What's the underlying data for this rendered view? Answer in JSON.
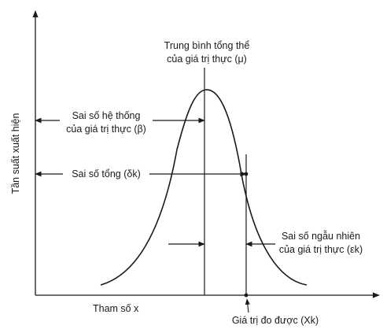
{
  "diagram": {
    "y_axis_label": "Tần suất xuất hiện",
    "x_axis_label": "Tham số x",
    "true_mean_line1": "Trung bình tổng thể",
    "true_mean_line2": "của giá trị thực (μ)",
    "systematic_error_line1": "Sai số hệ thống",
    "systematic_error_line2": "của giá trị thực (β)",
    "total_error": "Sai số tổng (δk)",
    "random_error_line1": "Sai số ngẫu nhiên",
    "random_error_line2": "của giá trị thực (εk)",
    "measured_value": "Giá trị đo được (Xk)"
  },
  "colors": {
    "ink": "#1a1a1a",
    "background": "#ffffff"
  }
}
